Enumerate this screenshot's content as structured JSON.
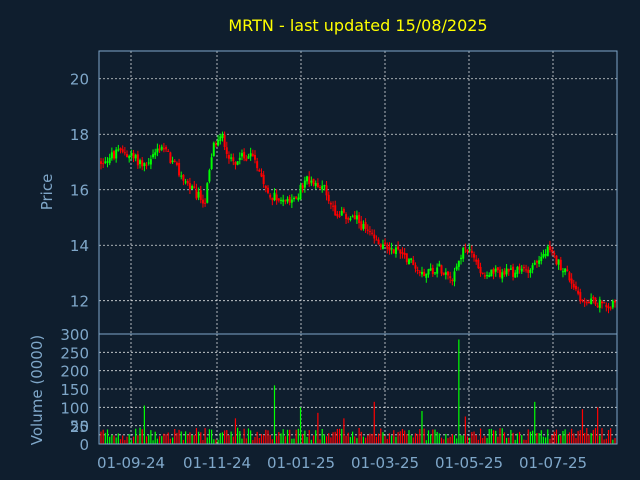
{
  "chart_data": [
    {
      "type": "candlestick",
      "title": "MRTN - last updated 15/08/2025",
      "ylabel": "Price",
      "ylim": [
        10.8,
        21
      ],
      "yticks": [
        12,
        14,
        16,
        18,
        20
      ],
      "xticks": [
        "01-09-24",
        "01-11-24",
        "01-01-25",
        "01-03-25",
        "01-05-25",
        "01-07-25"
      ],
      "grid": true,
      "up_color": "#00ff00",
      "down_color": "#ff0000",
      "trend_points": [
        {
          "day": 0,
          "price": 17.0
        },
        {
          "day": 10,
          "price": 17.4
        },
        {
          "day": 20,
          "price": 16.9
        },
        {
          "day": 28,
          "price": 17.6
        },
        {
          "day": 36,
          "price": 16.6
        },
        {
          "day": 44,
          "price": 15.8
        },
        {
          "day": 48,
          "price": 15.6
        },
        {
          "day": 52,
          "price": 17.6
        },
        {
          "day": 56,
          "price": 17.9
        },
        {
          "day": 60,
          "price": 17.0
        },
        {
          "day": 70,
          "price": 17.3
        },
        {
          "day": 78,
          "price": 15.8
        },
        {
          "day": 88,
          "price": 15.5
        },
        {
          "day": 95,
          "price": 16.4
        },
        {
          "day": 102,
          "price": 16.2
        },
        {
          "day": 108,
          "price": 15.2
        },
        {
          "day": 118,
          "price": 14.9
        },
        {
          "day": 128,
          "price": 14.0
        },
        {
          "day": 138,
          "price": 13.8
        },
        {
          "day": 148,
          "price": 13.0
        },
        {
          "day": 156,
          "price": 13.2
        },
        {
          "day": 162,
          "price": 12.9
        },
        {
          "day": 168,
          "price": 14.0
        },
        {
          "day": 176,
          "price": 13.0
        },
        {
          "day": 190,
          "price": 13.0
        },
        {
          "day": 198,
          "price": 13.2
        },
        {
          "day": 206,
          "price": 13.8
        },
        {
          "day": 214,
          "price": 13.1
        },
        {
          "day": 222,
          "price": 12.0
        },
        {
          "day": 230,
          "price": 11.9
        }
      ]
    },
    {
      "type": "bar",
      "ylabel": "Volume (0000)",
      "ylim": [
        0,
        300
      ],
      "yticks": [
        0,
        25,
        50,
        100,
        150,
        200,
        250,
        300
      ],
      "up_color": "#00ff00",
      "down_color": "#ff0000",
      "typical_value": 25,
      "spikes": [
        {
          "day": 20,
          "value": 105
        },
        {
          "day": 62,
          "value": 70
        },
        {
          "day": 80,
          "value": 160
        },
        {
          "day": 92,
          "value": 100
        },
        {
          "day": 100,
          "value": 85
        },
        {
          "day": 112,
          "value": 70
        },
        {
          "day": 126,
          "value": 115
        },
        {
          "day": 148,
          "value": 90
        },
        {
          "day": 165,
          "value": 285
        },
        {
          "day": 168,
          "value": 75
        },
        {
          "day": 200,
          "value": 115
        },
        {
          "day": 222,
          "value": 95
        },
        {
          "day": 229,
          "value": 100
        }
      ]
    }
  ]
}
